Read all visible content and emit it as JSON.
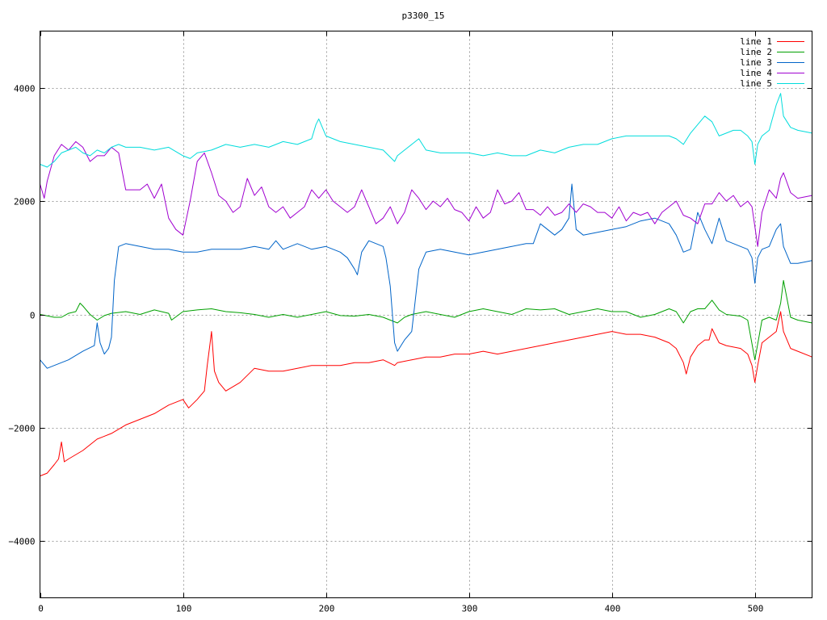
{
  "chart_data": {
    "type": "line",
    "title": "p3300_15",
    "xlabel": "",
    "ylabel": "",
    "xlim": [
      0,
      540
    ],
    "ylim": [
      -5000,
      5000
    ],
    "xticks": [
      0,
      100,
      200,
      300,
      400,
      500
    ],
    "yticks": [
      -4000,
      -2000,
      0,
      2000,
      4000
    ],
    "ytick_labels": [
      "−4000",
      "−2000",
      "0",
      "2000",
      "4000"
    ],
    "grid": true,
    "legend_position": "top-right",
    "series": [
      {
        "name": "line 1",
        "color": "#ff0000",
        "x": [
          0,
          5,
          10,
          13,
          15,
          17,
          20,
          30,
          40,
          50,
          60,
          70,
          80,
          90,
          100,
          104,
          110,
          115,
          117,
          119,
          120,
          122,
          125,
          130,
          140,
          150,
          160,
          170,
          180,
          190,
          200,
          210,
          220,
          230,
          240,
          248,
          250,
          260,
          270,
          280,
          290,
          300,
          310,
          320,
          330,
          340,
          350,
          360,
          370,
          380,
          390,
          400,
          410,
          420,
          430,
          440,
          445,
          450,
          452,
          455,
          460,
          465,
          468,
          470,
          475,
          480,
          490,
          495,
          498,
          500,
          502,
          505,
          510,
          515,
          518,
          520,
          525,
          530,
          540
        ],
        "y": [
          -2850,
          -2800,
          -2650,
          -2550,
          -2250,
          -2600,
          -2550,
          -2400,
          -2200,
          -2100,
          -1950,
          -1850,
          -1750,
          -1600,
          -1500,
          -1650,
          -1500,
          -1350,
          -900,
          -500,
          -300,
          -1000,
          -1200,
          -1350,
          -1200,
          -950,
          -1000,
          -1000,
          -950,
          -900,
          -900,
          -900,
          -850,
          -850,
          -800,
          -900,
          -850,
          -800,
          -750,
          -750,
          -700,
          -700,
          -650,
          -700,
          -650,
          -600,
          -550,
          -500,
          -450,
          -400,
          -350,
          -300,
          -350,
          -350,
          -400,
          -500,
          -600,
          -850,
          -1050,
          -750,
          -550,
          -450,
          -450,
          -250,
          -500,
          -550,
          -600,
          -700,
          -900,
          -1200,
          -900,
          -500,
          -400,
          -300,
          50,
          -300,
          -600,
          -650,
          -750
        ]
      },
      {
        "name": "line 2",
        "color": "#00a000",
        "x": [
          0,
          10,
          15,
          20,
          25,
          28,
          30,
          35,
          40,
          45,
          50,
          60,
          70,
          80,
          90,
          92,
          100,
          110,
          120,
          130,
          140,
          150,
          160,
          170,
          180,
          190,
          200,
          210,
          220,
          230,
          240,
          245,
          250,
          255,
          260,
          270,
          280,
          290,
          300,
          310,
          320,
          330,
          340,
          350,
          360,
          370,
          380,
          390,
          400,
          410,
          420,
          430,
          440,
          445,
          450,
          455,
          460,
          465,
          470,
          475,
          480,
          490,
          495,
          500,
          505,
          510,
          515,
          518,
          520,
          525,
          530,
          540
        ],
        "y": [
          0,
          -50,
          -50,
          20,
          50,
          200,
          150,
          0,
          -100,
          -20,
          20,
          50,
          0,
          80,
          20,
          -100,
          50,
          80,
          100,
          50,
          30,
          0,
          -50,
          0,
          -50,
          0,
          50,
          -20,
          -30,
          0,
          -50,
          -100,
          -150,
          -50,
          0,
          50,
          0,
          -50,
          50,
          100,
          50,
          0,
          100,
          80,
          100,
          0,
          50,
          100,
          50,
          50,
          -50,
          0,
          100,
          50,
          -150,
          50,
          100,
          100,
          250,
          80,
          0,
          -30,
          -100,
          -800,
          -100,
          -50,
          -100,
          200,
          600,
          -50,
          -100,
          -150
        ]
      },
      {
        "name": "line 3",
        "color": "#0064c8",
        "x": [
          0,
          5,
          10,
          20,
          30,
          38,
          40,
          42,
          45,
          48,
          50,
          52,
          55,
          60,
          70,
          80,
          90,
          100,
          110,
          120,
          130,
          140,
          150,
          160,
          165,
          170,
          180,
          190,
          200,
          210,
          215,
          220,
          222,
          225,
          230,
          240,
          242,
          245,
          248,
          250,
          255,
          260,
          265,
          270,
          280,
          290,
          300,
          310,
          320,
          330,
          340,
          345,
          350,
          360,
          365,
          370,
          372,
          375,
          380,
          390,
          400,
          410,
          420,
          430,
          440,
          445,
          450,
          455,
          460,
          465,
          470,
          475,
          480,
          490,
          495,
          498,
          500,
          502,
          505,
          510,
          515,
          518,
          520,
          525,
          530,
          540
        ],
        "y": [
          -800,
          -950,
          -900,
          -800,
          -650,
          -550,
          -150,
          -500,
          -700,
          -600,
          -400,
          600,
          1200,
          1250,
          1200,
          1150,
          1150,
          1100,
          1100,
          1150,
          1150,
          1150,
          1200,
          1150,
          1300,
          1150,
          1250,
          1150,
          1200,
          1100,
          1000,
          800,
          700,
          1100,
          1300,
          1200,
          1000,
          500,
          -500,
          -650,
          -450,
          -300,
          800,
          1100,
          1150,
          1100,
          1050,
          1100,
          1150,
          1200,
          1250,
          1250,
          1600,
          1400,
          1500,
          1700,
          2300,
          1500,
          1400,
          1450,
          1500,
          1550,
          1650,
          1700,
          1600,
          1400,
          1100,
          1150,
          1800,
          1500,
          1250,
          1700,
          1300,
          1200,
          1150,
          1000,
          550,
          1000,
          1150,
          1200,
          1500,
          1600,
          1200,
          900,
          900,
          950
        ]
      },
      {
        "name": "line 4",
        "color": "#a000d0",
        "x": [
          0,
          3,
          5,
          10,
          15,
          20,
          25,
          30,
          35,
          40,
          45,
          50,
          55,
          60,
          65,
          70,
          75,
          80,
          85,
          90,
          95,
          100,
          105,
          110,
          115,
          120,
          125,
          130,
          135,
          140,
          145,
          150,
          155,
          160,
          165,
          170,
          175,
          180,
          185,
          190,
          195,
          200,
          205,
          210,
          215,
          220,
          225,
          230,
          235,
          240,
          245,
          250,
          255,
          260,
          265,
          270,
          275,
          280,
          285,
          290,
          295,
          300,
          305,
          310,
          315,
          320,
          325,
          330,
          335,
          340,
          345,
          350,
          355,
          360,
          365,
          370,
          375,
          380,
          385,
          390,
          395,
          400,
          405,
          410,
          415,
          420,
          425,
          430,
          435,
          440,
          445,
          450,
          455,
          460,
          465,
          470,
          475,
          480,
          485,
          490,
          495,
          498,
          500,
          502,
          505,
          510,
          515,
          518,
          520,
          525,
          530,
          540
        ],
        "y": [
          2300,
          2050,
          2350,
          2800,
          3000,
          2900,
          3050,
          2950,
          2700,
          2800,
          2800,
          2950,
          2850,
          2200,
          2200,
          2200,
          2300,
          2050,
          2300,
          1700,
          1500,
          1400,
          2000,
          2700,
          2850,
          2500,
          2100,
          2000,
          1800,
          1900,
          2400,
          2100,
          2250,
          1900,
          1800,
          1900,
          1700,
          1800,
          1900,
          2200,
          2050,
          2200,
          2000,
          1900,
          1800,
          1900,
          2200,
          1900,
          1600,
          1700,
          1900,
          1600,
          1800,
          2200,
          2050,
          1850,
          2000,
          1900,
          2050,
          1850,
          1800,
          1650,
          1900,
          1700,
          1800,
          2200,
          1950,
          2000,
          2150,
          1850,
          1850,
          1750,
          1900,
          1750,
          1800,
          1950,
          1800,
          1950,
          1900,
          1800,
          1800,
          1700,
          1900,
          1650,
          1800,
          1750,
          1800,
          1600,
          1800,
          1900,
          2000,
          1750,
          1700,
          1600,
          1950,
          1950,
          2150,
          2000,
          2100,
          1900,
          2000,
          1900,
          1550,
          1200,
          1800,
          2200,
          2050,
          2400,
          2500,
          2150,
          2050,
          2100
        ]
      },
      {
        "name": "line 5",
        "color": "#00dcdc",
        "x": [
          0,
          5,
          10,
          15,
          20,
          25,
          30,
          35,
          40,
          45,
          50,
          55,
          60,
          70,
          80,
          90,
          100,
          105,
          110,
          120,
          130,
          140,
          150,
          160,
          170,
          180,
          190,
          193,
          195,
          200,
          210,
          220,
          230,
          240,
          248,
          250,
          255,
          260,
          265,
          270,
          280,
          290,
          300,
          310,
          320,
          330,
          340,
          350,
          360,
          370,
          380,
          390,
          400,
          410,
          420,
          430,
          440,
          445,
          450,
          455,
          460,
          465,
          470,
          475,
          480,
          485,
          490,
          495,
          498,
          500,
          502,
          505,
          510,
          515,
          518,
          520,
          525,
          530,
          540
        ],
        "y": [
          2650,
          2600,
          2700,
          2850,
          2900,
          2950,
          2850,
          2800,
          2900,
          2850,
          2950,
          3000,
          2950,
          2950,
          2900,
          2950,
          2800,
          2750,
          2850,
          2900,
          3000,
          2950,
          3000,
          2950,
          3050,
          3000,
          3100,
          3350,
          3450,
          3150,
          3050,
          3000,
          2950,
          2900,
          2700,
          2800,
          2900,
          3000,
          3100,
          2900,
          2850,
          2850,
          2850,
          2800,
          2850,
          2800,
          2800,
          2900,
          2850,
          2950,
          3000,
          3000,
          3100,
          3150,
          3150,
          3150,
          3150,
          3100,
          3000,
          3200,
          3350,
          3500,
          3400,
          3150,
          3200,
          3250,
          3250,
          3150,
          3050,
          2650,
          3000,
          3150,
          3250,
          3700,
          3900,
          3500,
          3300,
          3250,
          3200
        ]
      }
    ]
  }
}
